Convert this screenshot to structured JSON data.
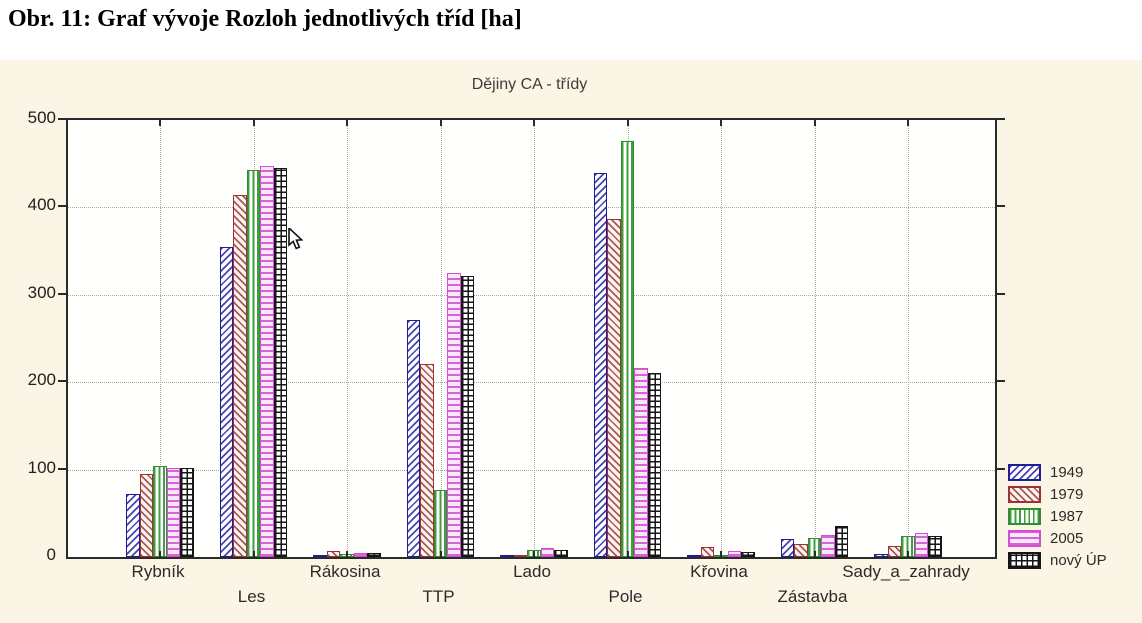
{
  "caption": "Obr. 11: Graf vývoje Rozloh jednotlivých tříd [ha]",
  "chart_data": {
    "type": "bar",
    "title": "Dějiny CA - třídy",
    "categories": [
      "Rybník",
      "Les",
      "Rákosina",
      "TTP",
      "Lado",
      "Pole",
      "Křovina",
      "Zástavba",
      "Sady_a_zahrady"
    ],
    "series": [
      {
        "name": "1949",
        "color": "#1d1d96",
        "pattern": "diagonal-up",
        "values": [
          72,
          355,
          1,
          271,
          1,
          439,
          1,
          21,
          3
        ]
      },
      {
        "name": "1979",
        "color": "#9e3232",
        "pattern": "diagonal-down",
        "values": [
          95,
          414,
          7,
          221,
          1,
          387,
          11,
          15,
          13
        ]
      },
      {
        "name": "1987",
        "color": "#2f8f2f",
        "pattern": "vertical",
        "values": [
          104,
          443,
          3,
          77,
          8,
          476,
          2,
          22,
          24
        ]
      },
      {
        "name": "2005",
        "color": "#d24fd2",
        "pattern": "horizontal",
        "values": [
          102,
          447,
          5,
          325,
          10,
          216,
          7,
          25,
          27
        ]
      },
      {
        "name": "nový ÚP",
        "color": "#161616",
        "pattern": "grid",
        "values": [
          102,
          445,
          5,
          321,
          8,
          211,
          6,
          36,
          24
        ]
      }
    ],
    "ylim": [
      0,
      500
    ],
    "yticks": [
      0,
      100,
      200,
      300,
      400,
      500
    ],
    "grid": true,
    "legend_position": "right-bottom",
    "colors": {
      "panel_background": "#faf5e4",
      "plot_background": "#ffffff",
      "gridline": "#a9a9a2",
      "axis": "#2a2a2a",
      "text": "#2b2b2b"
    }
  }
}
